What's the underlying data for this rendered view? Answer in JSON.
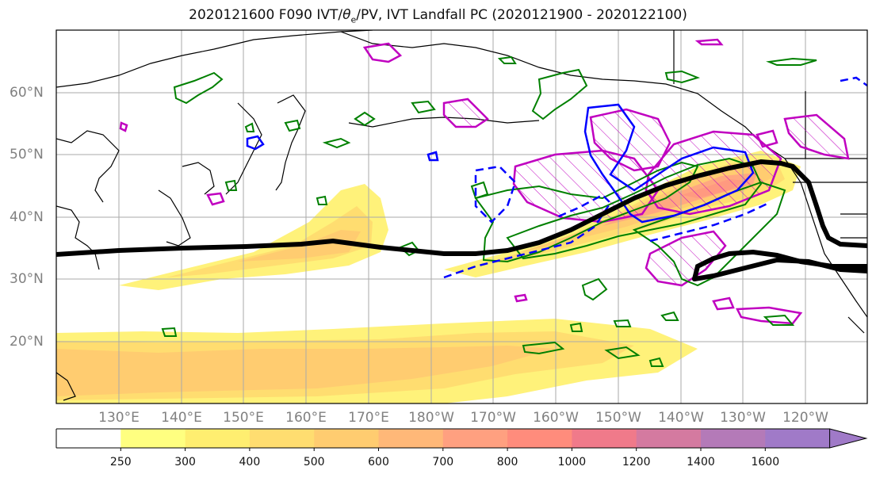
{
  "figure": {
    "title": "2020121600 F090 IVT/θe/PV, IVT Landfall PC (2020121900 - 2020122100)",
    "title_prefix": "2020121600 F090 IVT/",
    "title_theta": "θ",
    "title_sub": "e",
    "title_suffix": "/PV, IVT Landfall PC (2020121900 - 2020122100)"
  },
  "map": {
    "lat_labels": [
      "60°N",
      "50°N",
      "40°N",
      "30°N",
      "20°N"
    ],
    "lon_labels": [
      "130°E",
      "140°E",
      "150°E",
      "160°E",
      "170°E",
      "180°W",
      "170°W",
      "160°W",
      "150°W",
      "140°W",
      "130°W",
      "120°W"
    ],
    "extent_lon": [
      120,
      250
    ],
    "extent_lat": [
      10,
      70
    ],
    "colors": {
      "coast": "#000000",
      "pv_contour": "#008000",
      "theta_contour": "#0000ff",
      "landfall_pc": "#c000c0",
      "jet_line": "#000000",
      "grid": "#aaaaaa"
    }
  },
  "colorbar": {
    "levels": [
      "250",
      "300",
      "400",
      "500",
      "600",
      "700",
      "800",
      "1000",
      "1200",
      "1400",
      "1600"
    ],
    "colors": [
      "#ffffff",
      "#ffff80",
      "#ffee70",
      "#ffdd70",
      "#ffcc70",
      "#ffb878",
      "#ffa080",
      "#ff8c7c",
      "#f07a8a",
      "#d47aa0",
      "#b47ab8",
      "#a07ac8"
    ]
  }
}
